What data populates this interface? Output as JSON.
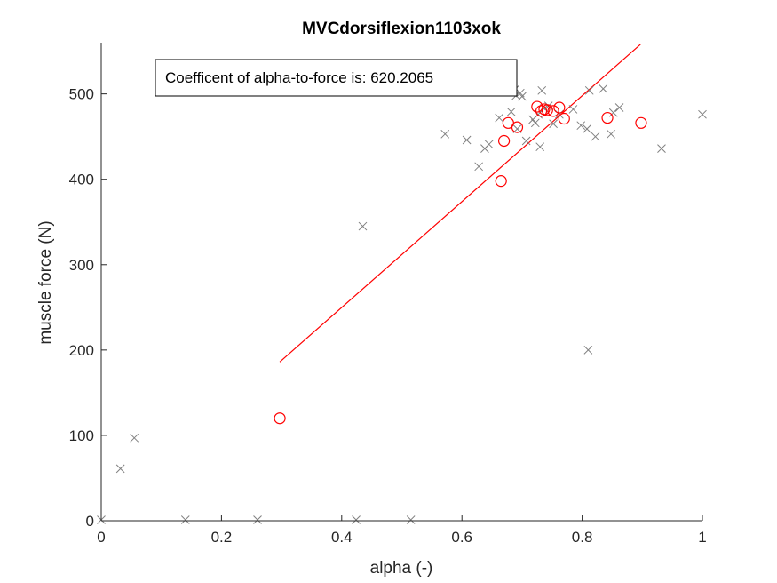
{
  "chart_data": {
    "type": "scatter",
    "title": "MVCdorsiflexion1103xok",
    "xlabel": "alpha (-)",
    "ylabel": "muscle force (N)",
    "xlim": [
      0,
      1
    ],
    "ylim": [
      0,
      560
    ],
    "xticks": [
      0,
      0.2,
      0.4,
      0.6,
      0.8,
      1
    ],
    "xtick_labels": [
      "0",
      "0.2",
      "0.4",
      "0.6",
      "0.8",
      "1"
    ],
    "yticks": [
      0,
      100,
      200,
      300,
      400,
      500
    ],
    "ytick_labels": [
      "0",
      "100",
      "200",
      "300",
      "400",
      "500"
    ],
    "grid": false,
    "annotation": "Coefficent of alpha-to-force is: 620.2065",
    "colors": {
      "crosses": "#808080",
      "circles": "#ff0000",
      "fit_line": "#ff0000",
      "axes": "#262626"
    },
    "series": [
      {
        "marker": "x",
        "color": "#808080",
        "points": [
          [
            0.0,
            1
          ],
          [
            0.032,
            61
          ],
          [
            0.055,
            97
          ],
          [
            0.14,
            1
          ],
          [
            0.26,
            1
          ],
          [
            0.424,
            1
          ],
          [
            0.435,
            345
          ],
          [
            0.515,
            1
          ],
          [
            0.572,
            453
          ],
          [
            0.608,
            446
          ],
          [
            0.628,
            415
          ],
          [
            0.638,
            436
          ],
          [
            0.645,
            441
          ],
          [
            0.662,
            472
          ],
          [
            0.682,
            479
          ],
          [
            0.688,
            505
          ],
          [
            0.69,
            498
          ],
          [
            0.692,
            459
          ],
          [
            0.697,
            501
          ],
          [
            0.7,
            497
          ],
          [
            0.707,
            445
          ],
          [
            0.718,
            470
          ],
          [
            0.722,
            466
          ],
          [
            0.727,
            476
          ],
          [
            0.73,
            438
          ],
          [
            0.733,
            504
          ],
          [
            0.737,
            483
          ],
          [
            0.744,
            486
          ],
          [
            0.752,
            465
          ],
          [
            0.762,
            476
          ],
          [
            0.785,
            482
          ],
          [
            0.798,
            463
          ],
          [
            0.808,
            459
          ],
          [
            0.81,
            200
          ],
          [
            0.812,
            504
          ],
          [
            0.822,
            450
          ],
          [
            0.835,
            506
          ],
          [
            0.848,
            453
          ],
          [
            0.852,
            478
          ],
          [
            0.862,
            484
          ],
          [
            0.932,
            436
          ],
          [
            1.0,
            476
          ]
        ]
      },
      {
        "marker": "o",
        "color": "#ff0000",
        "points": [
          [
            0.297,
            120
          ],
          [
            0.665,
            398
          ],
          [
            0.67,
            445
          ],
          [
            0.677,
            466
          ],
          [
            0.692,
            461
          ],
          [
            0.725,
            485
          ],
          [
            0.732,
            480
          ],
          [
            0.737,
            482
          ],
          [
            0.742,
            481
          ],
          [
            0.752,
            480
          ],
          [
            0.762,
            484
          ],
          [
            0.77,
            471
          ],
          [
            0.842,
            472
          ],
          [
            0.898,
            466
          ]
        ]
      }
    ],
    "fit_line": {
      "color": "#ff0000",
      "x": [
        0.297,
        0.897
      ],
      "y": [
        186,
        558
      ]
    }
  }
}
